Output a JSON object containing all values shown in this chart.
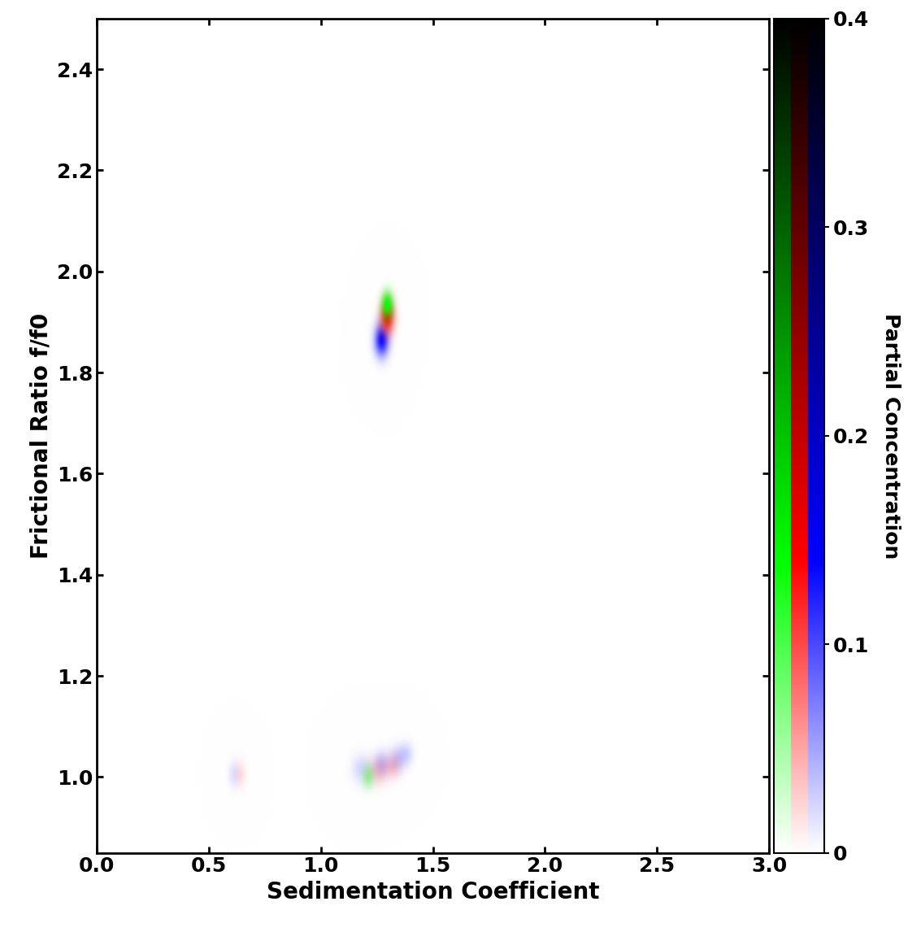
{
  "xlabel": "Sedimentation Coefficient",
  "ylabel": "Frictional Ratio f/f0",
  "colorbar_label": "Partial Concentration",
  "xlim": [
    0,
    3.0
  ],
  "ylim": [
    0.85,
    2.5
  ],
  "xticks": [
    0,
    0.5,
    1.0,
    1.5,
    2.0,
    2.5,
    3.0
  ],
  "yticks": [
    1.0,
    1.2,
    1.4,
    1.6,
    1.8,
    2.0,
    2.2,
    2.4
  ],
  "colorbar_ticks": [
    0,
    0.1,
    0.2,
    0.3,
    0.4
  ],
  "colorbar_max": 0.5,
  "samples": [
    {
      "color_rgb": [
        0,
        0,
        1
      ],
      "peaks": [
        {
          "s": 0.61,
          "f": 1.005,
          "amplitude": 0.06,
          "sigma_s": 0.018,
          "sigma_f": 0.018
        },
        {
          "s": 1.27,
          "f": 1.865,
          "amplitude": 0.48,
          "sigma_s": 0.022,
          "sigma_f": 0.022
        },
        {
          "s": 1.18,
          "f": 1.015,
          "amplitude": 0.08,
          "sigma_s": 0.03,
          "sigma_f": 0.02
        },
        {
          "s": 1.27,
          "f": 1.025,
          "amplitude": 0.12,
          "sigma_s": 0.025,
          "sigma_f": 0.018
        },
        {
          "s": 1.34,
          "f": 1.035,
          "amplitude": 0.1,
          "sigma_s": 0.025,
          "sigma_f": 0.018
        },
        {
          "s": 1.38,
          "f": 1.045,
          "amplitude": 0.08,
          "sigma_s": 0.022,
          "sigma_f": 0.016
        }
      ]
    },
    {
      "color_rgb": [
        1,
        0,
        0
      ],
      "peaks": [
        {
          "s": 0.64,
          "f": 1.005,
          "amplitude": 0.06,
          "sigma_s": 0.018,
          "sigma_f": 0.018
        },
        {
          "s": 1.295,
          "f": 1.91,
          "amplitude": 0.48,
          "sigma_s": 0.022,
          "sigma_f": 0.022
        },
        {
          "s": 1.25,
          "f": 1.01,
          "amplitude": 0.1,
          "sigma_s": 0.03,
          "sigma_f": 0.018
        },
        {
          "s": 1.32,
          "f": 1.02,
          "amplitude": 0.1,
          "sigma_s": 0.025,
          "sigma_f": 0.016
        }
      ]
    },
    {
      "color_rgb": [
        0,
        1,
        0
      ],
      "peaks": [
        {
          "s": 1.295,
          "f": 1.935,
          "amplitude": 0.48,
          "sigma_s": 0.018,
          "sigma_f": 0.018
        },
        {
          "s": 1.21,
          "f": 1.0,
          "amplitude": 0.18,
          "sigma_s": 0.018,
          "sigma_f": 0.016
        }
      ]
    }
  ],
  "background_color": "#ffffff",
  "font_size": 20,
  "tick_font_size": 18,
  "cb_font_size": 18
}
